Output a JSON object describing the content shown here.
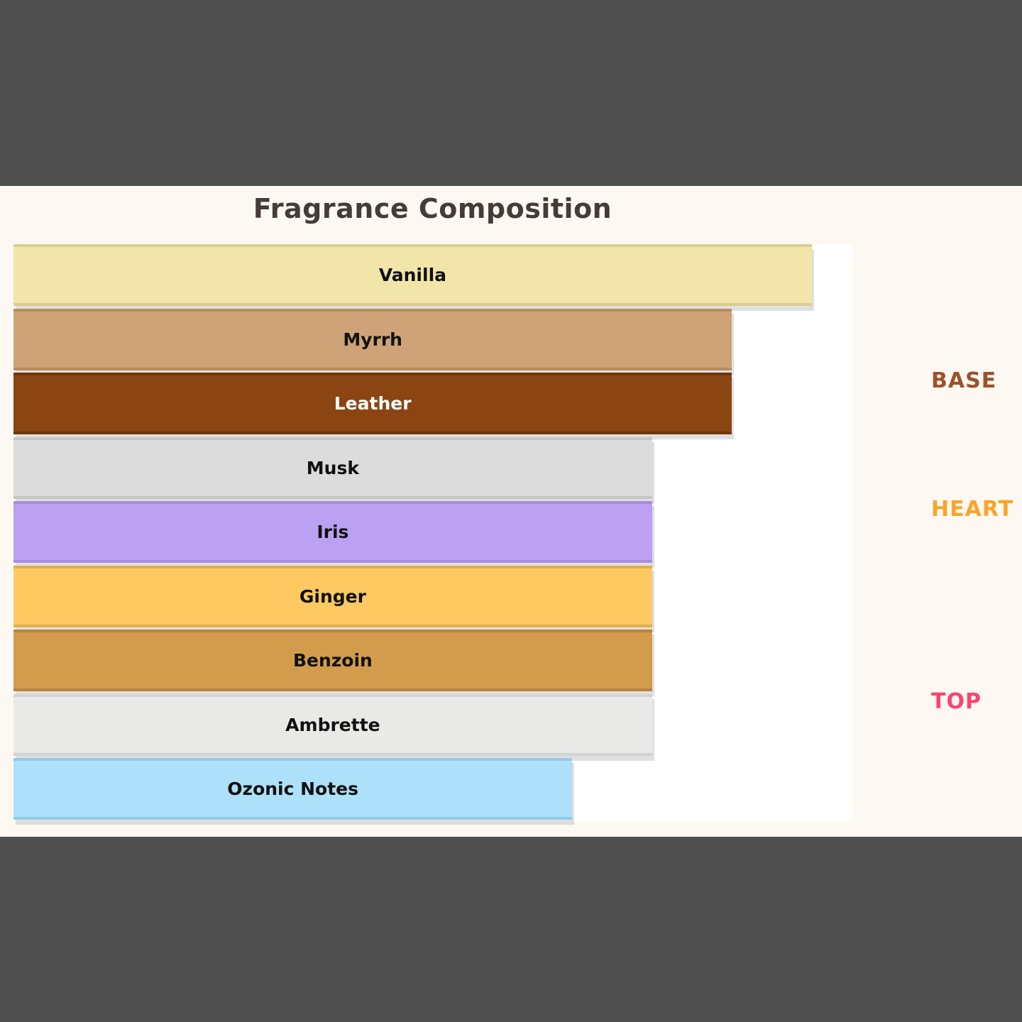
{
  "chart_data": {
    "type": "bar",
    "orientation": "horizontal",
    "title": "Fragrance Composition",
    "categories": [
      "Vanilla",
      "Myrrh",
      "Leather",
      "Musk",
      "Iris",
      "Ginger",
      "Benzoin",
      "Ambrette",
      "Ozonic Notes"
    ],
    "values": [
      100,
      90,
      90,
      80,
      80,
      80,
      80,
      80,
      70
    ],
    "xlim": [
      0,
      105
    ],
    "grid": false,
    "axis_tick_labels": "none",
    "bar_colors": [
      "#F1E5AA",
      "#CFA377",
      "#8A4513",
      "#DCDCDC",
      "#BCA0F2",
      "#FFC962",
      "#D39C4D",
      "#E9E9E7",
      "#ADE1F9"
    ],
    "bar_edge_colors": [
      "#DACD92",
      "#B98C60",
      "#703608",
      "#C6C6C6",
      "#A78EDC",
      "#E2AE4B",
      "#B8843C",
      "#D2D2D0",
      "#95CBE7"
    ],
    "bar_label_colors": [
      "#111111",
      "#111111",
      "#FFFFFF",
      "#111111",
      "#111111",
      "#111111",
      "#111111",
      "#111111",
      "#111111"
    ],
    "phase_labels": [
      {
        "label": "BASE",
        "color": "#9C522A"
      },
      {
        "label": "HEART",
        "color": "#FCA329"
      },
      {
        "label": "TOP",
        "color": "#FB436E"
      }
    ],
    "legend_position": "right",
    "title_color": "#473B38",
    "figure_background": "#FDF9F2",
    "plot_background": "#FFFFFF",
    "letterbox_color": "#4F4F4F"
  }
}
